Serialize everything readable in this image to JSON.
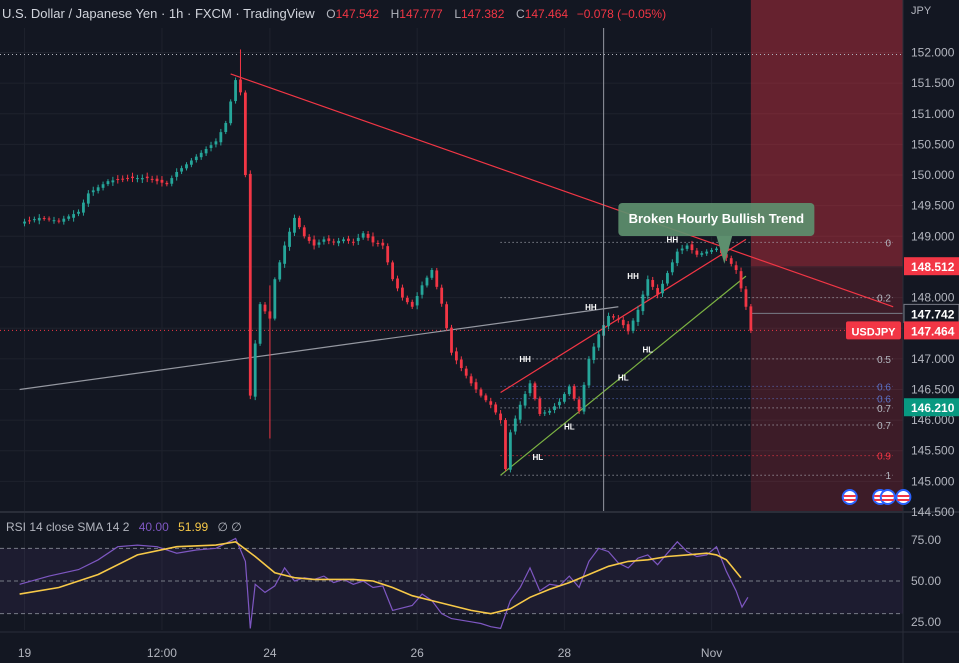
{
  "header": {
    "symbol": "U.S. Dollar / Japanese Yen · 1h · FXCM · TradingView",
    "o_label": "O",
    "o_value": "147.542",
    "h_label": "H",
    "h_value": "147.777",
    "l_label": "L",
    "l_value": "147.382",
    "c_label": "C",
    "c_value": "147.464",
    "change": "−0.078 (−0.05%)"
  },
  "colors": {
    "background": "#131722",
    "up": "#26a69a",
    "down": "#f23645",
    "rsi": "#7e57c2",
    "rsi_sma": "#f7c948"
  },
  "annotation": {
    "label": "Broken Hourly Bullish Trend"
  },
  "price_badges": [
    {
      "label": "148.512",
      "value": 148.512,
      "color": "#f23645"
    },
    {
      "label": "147.742",
      "value": 147.742,
      "color": "#131722"
    },
    {
      "label": "147.464",
      "value": 147.464,
      "color": "#f23645"
    },
    {
      "label": "146.210",
      "value": 146.21,
      "color": "#089981"
    }
  ],
  "symbol_badge": "USDJPY",
  "rsi_header": {
    "label": "RSI 14 close SMA 14 2",
    "rsi": "40.00",
    "sma": "51.99",
    "extra": "∅ ∅"
  },
  "event_icons": [
    0.65,
    0.85,
    0.9,
    0.95
  ],
  "chart_data": [
    {
      "type": "candlestick",
      "title": "U.S. Dollar / Japanese Yen · 1h · FXCM",
      "currency": "JPY",
      "xlabel": "",
      "ylabel": "",
      "ylim": [
        144.5,
        152.4
      ],
      "y_ticks": [
        152.0,
        151.5,
        151.0,
        150.5,
        150.0,
        149.5,
        149.0,
        148.5,
        148.0,
        147.5,
        147.0,
        146.5,
        146.0,
        145.5,
        145.0,
        144.5
      ],
      "x_tick_labels": [
        "19",
        "12:00",
        "24",
        "26",
        "28",
        "Nov"
      ],
      "x_ticks_at": [
        0.5,
        14.5,
        25.5,
        40.5,
        55.5,
        70.5
      ],
      "close_path": [
        [
          0,
          149.22
        ],
        [
          2,
          149.3
        ],
        [
          4,
          149.25
        ],
        [
          6,
          149.4
        ],
        [
          7,
          149.7
        ],
        [
          9,
          149.9
        ],
        [
          11,
          149.95
        ],
        [
          13,
          149.95
        ],
        [
          15,
          149.85
        ],
        [
          16,
          150.05
        ],
        [
          18,
          150.3
        ],
        [
          20,
          150.55
        ],
        [
          21,
          150.85
        ],
        [
          22,
          151.55
        ],
        [
          22.5,
          151.35
        ],
        [
          23,
          150.0
        ],
        [
          23.5,
          146.4
        ],
        [
          24,
          147.25
        ],
        [
          24.7,
          148.15
        ],
        [
          25.3,
          147.4
        ],
        [
          26,
          148.3
        ],
        [
          27,
          148.85
        ],
        [
          28,
          149.3
        ],
        [
          29,
          149.0
        ],
        [
          30,
          148.85
        ],
        [
          31,
          148.95
        ],
        [
          32,
          148.9
        ],
        [
          33,
          148.95
        ],
        [
          34,
          148.9
        ],
        [
          35,
          149.05
        ],
        [
          36,
          148.9
        ],
        [
          37,
          148.85
        ],
        [
          38,
          148.3
        ],
        [
          39,
          148.0
        ],
        [
          40,
          147.85
        ],
        [
          41,
          148.2
        ],
        [
          42,
          148.45
        ],
        [
          43,
          147.9
        ],
        [
          44,
          147.1
        ],
        [
          45,
          146.85
        ],
        [
          46,
          146.6
        ],
        [
          47,
          146.4
        ],
        [
          48,
          146.25
        ],
        [
          49,
          146.0
        ],
        [
          49.5,
          145.2
        ],
        [
          50,
          145.8
        ],
        [
          51,
          146.25
        ],
        [
          52,
          146.6
        ],
        [
          53,
          146.1
        ],
        [
          54,
          146.15
        ],
        [
          55,
          146.3
        ],
        [
          56,
          146.55
        ],
        [
          57,
          146.15
        ],
        [
          58,
          147.0
        ],
        [
          59,
          147.4
        ],
        [
          60,
          147.7
        ],
        [
          61,
          147.65
        ],
        [
          62,
          147.45
        ],
        [
          63,
          147.8
        ],
        [
          64,
          148.3
        ],
        [
          65,
          148.05
        ],
        [
          66,
          148.4
        ],
        [
          67,
          148.75
        ],
        [
          68,
          148.85
        ],
        [
          69,
          148.7
        ],
        [
          70,
          148.75
        ],
        [
          71,
          148.8
        ],
        [
          72,
          148.65
        ],
        [
          73,
          148.45
        ],
        [
          74,
          147.85
        ],
        [
          74.5,
          147.46
        ]
      ],
      "annotations": [
        "HH",
        "HH",
        "HH",
        "HH",
        "HL",
        "HL",
        "HL",
        "HL"
      ],
      "fib_levels": [
        {
          "label": "0",
          "value": 148.9
        },
        {
          "label": "0.2",
          "value": 148.0
        },
        {
          "label": "0.5",
          "value": 147.0
        },
        {
          "label": "0.6",
          "value": 146.55
        },
        {
          "label": "0.6",
          "value": 146.35
        },
        {
          "label": "0.7",
          "value": 146.2
        },
        {
          "label": "0.7",
          "value": 145.92
        },
        {
          "label": "0.9",
          "value": 145.42
        },
        {
          "label": "1",
          "value": 145.1
        }
      ],
      "lines": [
        {
          "name": "descending trendline",
          "from": [
            21.5,
            151.65
          ],
          "to": [
            89,
            147.85
          ]
        },
        {
          "name": "grey trendline",
          "from": [
            0,
            146.5
          ],
          "to": [
            61,
            147.85
          ]
        },
        {
          "name": "bullish channel top",
          "from": [
            49,
            146.45
          ],
          "to": [
            74,
            148.95
          ]
        },
        {
          "name": "bullish channel bottom",
          "from": [
            49,
            145.1
          ],
          "to": [
            74,
            148.35
          ]
        }
      ],
      "grid": true,
      "legend": "none"
    },
    {
      "type": "line",
      "title": "RSI 14 close SMA 14 2",
      "xlabel": "",
      "ylabel": "",
      "ylim": [
        20,
        80
      ],
      "y_ticks": [
        75.0,
        50.0,
        25.0
      ],
      "bands": [
        70,
        50,
        30
      ],
      "series": [
        {
          "name": "RSI",
          "values": [
            [
              0,
              48
            ],
            [
              3,
              53
            ],
            [
              6,
              57
            ],
            [
              8,
              63
            ],
            [
              10,
              71
            ],
            [
              12,
              72
            ],
            [
              14,
              71
            ],
            [
              16,
              67
            ],
            [
              18,
              69
            ],
            [
              20,
              70
            ],
            [
              22,
              76
            ],
            [
              23,
              62
            ],
            [
              23.5,
              21
            ],
            [
              24,
              48
            ],
            [
              25,
              43
            ],
            [
              26,
              47
            ],
            [
              27,
              58
            ],
            [
              28,
              50
            ],
            [
              29,
              52
            ],
            [
              30,
              51
            ],
            [
              31,
              53
            ],
            [
              32,
              49
            ],
            [
              33,
              51
            ],
            [
              34,
              48
            ],
            [
              35,
              50
            ],
            [
              36,
              46
            ],
            [
              37,
              47
            ],
            [
              38,
              32
            ],
            [
              40,
              35
            ],
            [
              41,
              42
            ],
            [
              42,
              38
            ],
            [
              43,
              30
            ],
            [
              44,
              27
            ],
            [
              45,
              26
            ],
            [
              46,
              25
            ],
            [
              47,
              24
            ],
            [
              48,
              22
            ],
            [
              49,
              21
            ],
            [
              50,
              38
            ],
            [
              51,
              46
            ],
            [
              52,
              58
            ],
            [
              53,
              44
            ],
            [
              54,
              48
            ],
            [
              55,
              47
            ],
            [
              56,
              53
            ],
            [
              57,
              46
            ],
            [
              58,
              62
            ],
            [
              59,
              70
            ],
            [
              60,
              68
            ],
            [
              61,
              61
            ],
            [
              62,
              58
            ],
            [
              63,
              64
            ],
            [
              64,
              66
            ],
            [
              65,
              60
            ],
            [
              66,
              67
            ],
            [
              67,
              74
            ],
            [
              68,
              68
            ],
            [
              69,
              65
            ],
            [
              70,
              66
            ],
            [
              71,
              71
            ],
            [
              72,
              56
            ],
            [
              73,
              44
            ],
            [
              73.6,
              34
            ],
            [
              74.2,
              40
            ]
          ]
        },
        {
          "name": "SMA",
          "values": [
            [
              0,
              42
            ],
            [
              4,
              46
            ],
            [
              8,
              54
            ],
            [
              12,
              66
            ],
            [
              16,
              71
            ],
            [
              20,
              72
            ],
            [
              22,
              74
            ],
            [
              24,
              65
            ],
            [
              26,
              55
            ],
            [
              28,
              52
            ],
            [
              30,
              51
            ],
            [
              34,
              51
            ],
            [
              36,
              50
            ],
            [
              38,
              46
            ],
            [
              40,
              41
            ],
            [
              42,
              38
            ],
            [
              44,
              35
            ],
            [
              46,
              32
            ],
            [
              48,
              30
            ],
            [
              50,
              33
            ],
            [
              52,
              40
            ],
            [
              54,
              45
            ],
            [
              56,
              49
            ],
            [
              58,
              54
            ],
            [
              60,
              59
            ],
            [
              62,
              62
            ],
            [
              64,
              63
            ],
            [
              66,
              65
            ],
            [
              68,
              66
            ],
            [
              70,
              67
            ],
            [
              71,
              66
            ],
            [
              72,
              63
            ],
            [
              73.5,
              52
            ]
          ]
        }
      ]
    }
  ]
}
